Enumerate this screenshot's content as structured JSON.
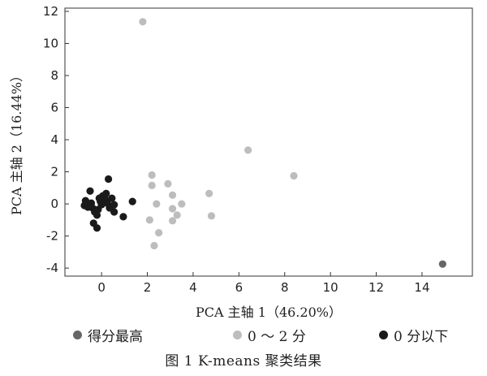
{
  "chart_data": {
    "type": "scatter",
    "xlabel": "PCA 主轴 1（46.20%）",
    "ylabel": "PCA 主轴 2（16.44%）",
    "xlim": [
      -1.6,
      16.2
    ],
    "ylim": [
      -4.5,
      12.2
    ],
    "xticks": [
      0,
      2,
      4,
      6,
      8,
      10,
      12,
      14
    ],
    "yticks": [
      -4,
      -2,
      0,
      2,
      4,
      6,
      8,
      10,
      12
    ],
    "grid": false,
    "legend_position": "bottom",
    "series": [
      {
        "name": "得分最高",
        "color": "#666666",
        "points": [
          [
            14.9,
            -3.75
          ]
        ]
      },
      {
        "name": "0 ～ 2 分",
        "color": "#bdbdbd",
        "points": [
          [
            1.8,
            11.35
          ],
          [
            6.4,
            3.35
          ],
          [
            8.4,
            1.75
          ],
          [
            2.2,
            1.8
          ],
          [
            2.2,
            1.15
          ],
          [
            2.9,
            1.25
          ],
          [
            3.1,
            0.55
          ],
          [
            4.7,
            0.65
          ],
          [
            2.4,
            0.0
          ],
          [
            3.5,
            0.0
          ],
          [
            3.1,
            -0.3
          ],
          [
            3.3,
            -0.7
          ],
          [
            4.8,
            -0.75
          ],
          [
            2.1,
            -1.0
          ],
          [
            3.1,
            -1.05
          ],
          [
            2.5,
            -1.8
          ],
          [
            2.3,
            -2.6
          ]
        ]
      },
      {
        "name": "0 分以下",
        "color": "#1a1a1a",
        "points": [
          [
            -0.5,
            0.8
          ],
          [
            -0.7,
            0.2
          ],
          [
            -0.75,
            -0.1
          ],
          [
            -0.6,
            -0.2
          ],
          [
            -0.45,
            0.05
          ],
          [
            -0.4,
            -0.25
          ],
          [
            -0.3,
            -0.5
          ],
          [
            -0.15,
            -0.35
          ],
          [
            -0.1,
            0.35
          ],
          [
            0.0,
            -0.05
          ],
          [
            0.05,
            0.5
          ],
          [
            0.15,
            0.3
          ],
          [
            0.2,
            0.65
          ],
          [
            0.25,
            0.05
          ],
          [
            0.35,
            -0.25
          ],
          [
            0.45,
            0.35
          ],
          [
            0.55,
            -0.05
          ],
          [
            0.3,
            1.55
          ],
          [
            -0.2,
            -0.7
          ],
          [
            -0.35,
            -1.2
          ],
          [
            -0.2,
            -1.5
          ],
          [
            0.55,
            -0.5
          ],
          [
            0.95,
            -0.8
          ],
          [
            1.35,
            0.15
          ],
          [
            -0.05,
            0.15
          ]
        ]
      }
    ]
  },
  "caption": "图 1   K-means 聚类结果"
}
